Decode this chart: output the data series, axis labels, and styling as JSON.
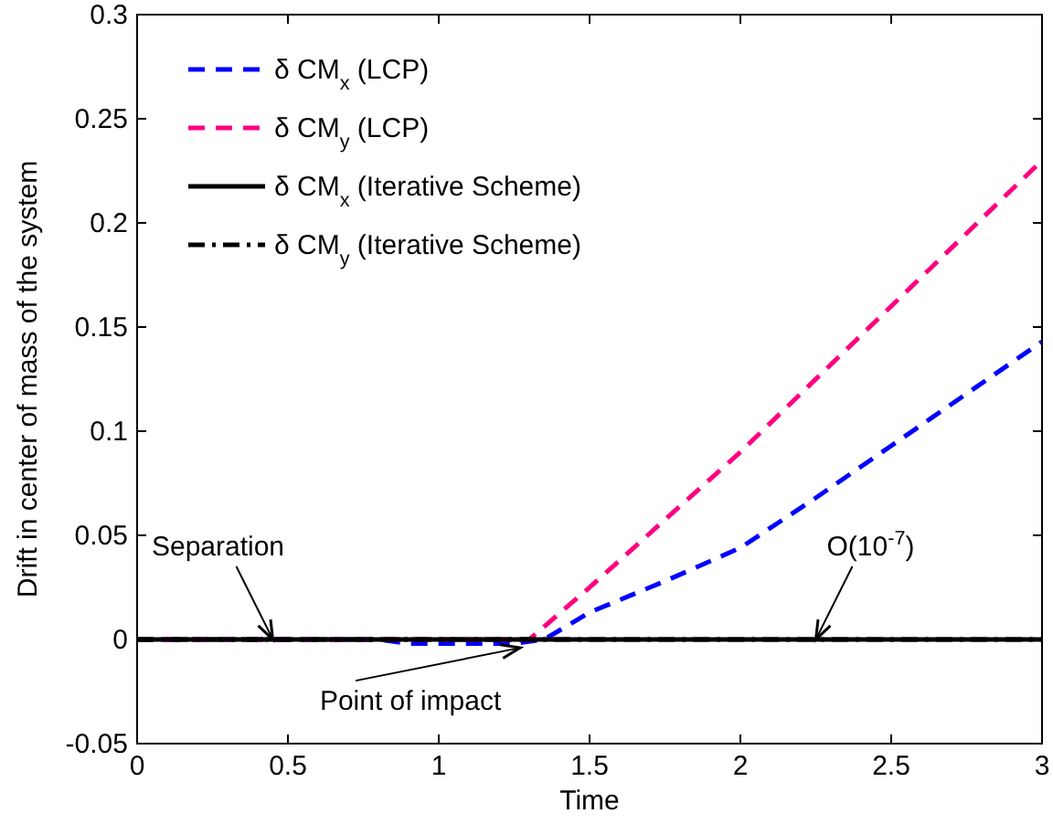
{
  "chart_data": {
    "type": "line",
    "xlabel": "Time",
    "ylabel": "Drift in center of mass of the system",
    "xlim": [
      0,
      3
    ],
    "ylim": [
      -0.05,
      0.3
    ],
    "xticks": [
      0,
      0.5,
      1,
      1.5,
      2,
      2.5,
      3
    ],
    "yticks": [
      -0.05,
      0,
      0.05,
      0.1,
      0.15,
      0.2,
      0.25,
      0.3
    ],
    "grid": false,
    "legend": "top left",
    "series": [
      {
        "name": "δ CM$_{x}$ (LCP)",
        "color": "#0000ff",
        "line_style": "dashed",
        "x": [
          0,
          0.8,
          0.9,
          1.25,
          1.35,
          1.5,
          1.75,
          2,
          2.25,
          2.5,
          3
        ],
        "values": [
          0,
          0,
          -0.002,
          -0.002,
          0,
          0.013,
          0.028,
          0.044,
          0.068,
          0.093,
          0.143
        ]
      },
      {
        "name": "δ CM$_{y}$ (LCP)",
        "color": "#ff0080",
        "line_style": "dashed",
        "x": [
          0,
          1.0,
          1.3,
          1.5,
          2,
          2.5,
          3
        ],
        "values": [
          0,
          0,
          0,
          0.025,
          0.09,
          0.16,
          0.23
        ]
      },
      {
        "name": "δ CM$_{x}$ (Iterative Scheme)",
        "color": "#000000",
        "line_style": "solid",
        "x": [
          0,
          3
        ],
        "values": [
          0,
          0
        ]
      },
      {
        "name": "δ CM$_{y}$ (Iterative Scheme)",
        "color": "#000000",
        "line_style": "dashdot",
        "x": [
          0,
          3
        ],
        "values": [
          0,
          0
        ]
      }
    ],
    "annotations": [
      {
        "text": "Separation",
        "x": 0.45,
        "y": 0
      },
      {
        "text": "Point of impact",
        "x": 1.27,
        "y": -0.004
      },
      {
        "text": "O(10$^{-7}$)",
        "x": 2.25,
        "y": 0
      }
    ]
  }
}
